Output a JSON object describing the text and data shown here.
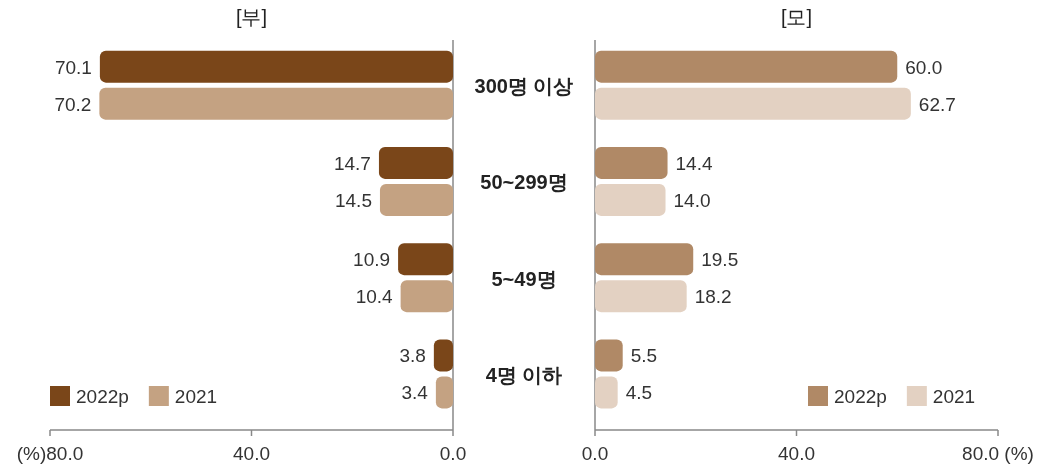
{
  "chart_data": [
    {
      "type": "bar",
      "orientation": "horizontal",
      "title": "[부]",
      "categories": [
        null,
        null,
        null,
        null
      ],
      "series": [
        {
          "name": "2022p",
          "color": "#7a4619",
          "values": [
            70.1,
            14.7,
            10.9,
            3.8
          ],
          "value_labels": [
            "70.1",
            "14.7",
            "10.9",
            "3.8"
          ]
        },
        {
          "name": "2021",
          "color": "#c4a282",
          "values": [
            70.2,
            14.5,
            10.4,
            3.4
          ],
          "value_labels": [
            "70.2",
            "14.5",
            "10.4",
            "3.4"
          ]
        }
      ],
      "xlim": [
        80,
        0
      ],
      "xticks": [
        {
          "value": 80,
          "label": "(%)80.0"
        },
        {
          "value": 40,
          "label": "40.0"
        },
        {
          "value": 0,
          "label": "0.0"
        }
      ],
      "tick_labels": "x",
      "legend": "bottom left"
    },
    {
      "type": "bar",
      "orientation": "horizontal",
      "title": "[모]",
      "categories": [
        "300명 이상",
        "50~299명",
        "5~49명",
        "4명 이하"
      ],
      "series": [
        {
          "name": "2022p",
          "color": "#b08966",
          "values": [
            60.0,
            14.4,
            19.5,
            5.5
          ],
          "value_labels": [
            "60.0",
            "14.4",
            "19.5",
            "5.5"
          ]
        },
        {
          "name": "2021",
          "color": "#e3d1c2",
          "values": [
            62.7,
            14.0,
            18.2,
            4.5
          ],
          "value_labels": [
            "62.7",
            "14.0",
            "18.2",
            "4.5"
          ]
        }
      ],
      "xlim": [
        0,
        80
      ],
      "xticks": [
        {
          "value": 0,
          "label": "0.0"
        },
        {
          "value": 40,
          "label": "40.0"
        },
        {
          "value": 80,
          "label": "80.0 (%)"
        }
      ],
      "legend": "bottom right"
    }
  ]
}
